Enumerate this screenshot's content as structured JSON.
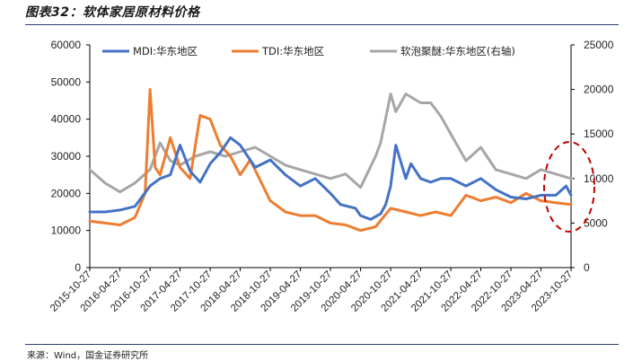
{
  "header": {
    "title": "图表32：软体家居原材料价格"
  },
  "footer": {
    "source": "来源：Wind，国金证券研究所"
  },
  "colors": {
    "mdi": "#4472c4",
    "tdi": "#ed7d31",
    "polyol": "#a6a6a6",
    "highlight": "#c00000",
    "axis": "#000000",
    "rule": "#2f3f6e"
  },
  "chart_data": {
    "type": "line",
    "x_tick_labels": [
      "2015-10-27",
      "2016-04-27",
      "2016-10-27",
      "2017-04-27",
      "2017-10-27",
      "2018-04-27",
      "2018-10-27",
      "2019-04-27",
      "2019-10-27",
      "2020-04-27",
      "2020-10-27",
      "2021-04-27",
      "2021-10-27",
      "2022-04-27",
      "2022-10-27",
      "2023-04-27",
      "2023-10-27"
    ],
    "y_left": {
      "min": 0,
      "max": 60000,
      "ticks": [
        "0",
        "10000",
        "20000",
        "30000",
        "40000",
        "50000",
        "60000"
      ]
    },
    "y_right": {
      "min": 0,
      "max": 25000,
      "ticks": [
        "0",
        "5000",
        "10000",
        "15000",
        "20000",
        "25000"
      ]
    },
    "legend_position": "top",
    "annotation": "red dashed ellipse around latest values",
    "series": [
      {
        "name": "MDI:华东地区",
        "axis": "left",
        "x": [
          "2015-10-27",
          "2016-01-27",
          "2016-04-27",
          "2016-07-27",
          "2016-10-27",
          "2016-12-27",
          "2017-02-27",
          "2017-04-27",
          "2017-06-27",
          "2017-08-27",
          "2017-10-27",
          "2017-12-27",
          "2018-02-27",
          "2018-04-27",
          "2018-07-27",
          "2018-10-27",
          "2019-01-27",
          "2019-04-27",
          "2019-07-27",
          "2019-10-27",
          "2019-12-27",
          "2020-03-27",
          "2020-04-27",
          "2020-06-27",
          "2020-08-27",
          "2020-09-27",
          "2020-10-27",
          "2020-11-27",
          "2021-01-27",
          "2021-02-27",
          "2021-04-27",
          "2021-06-27",
          "2021-08-27",
          "2021-10-27",
          "2022-01-27",
          "2022-04-27",
          "2022-07-27",
          "2022-10-27",
          "2023-01-27",
          "2023-04-27",
          "2023-07-27",
          "2023-09-27",
          "2023-10-27"
        ],
        "values": [
          15000,
          15000,
          15500,
          16500,
          22000,
          24000,
          25000,
          33000,
          26000,
          23000,
          28000,
          31000,
          35000,
          33000,
          27000,
          29000,
          25000,
          22000,
          24000,
          20000,
          17000,
          16000,
          14000,
          13000,
          14500,
          17000,
          22000,
          33000,
          24000,
          28000,
          24000,
          23000,
          24000,
          24000,
          22000,
          24000,
          21000,
          19000,
          18500,
          19500,
          19500,
          22000,
          19500
        ]
      },
      {
        "name": "TDI:华东地区",
        "axis": "left",
        "x": [
          "2015-10-27",
          "2016-01-27",
          "2016-04-27",
          "2016-07-27",
          "2016-09-27",
          "2016-10-27",
          "2016-11-27",
          "2016-12-27",
          "2017-02-27",
          "2017-04-27",
          "2017-06-27",
          "2017-08-27",
          "2017-10-27",
          "2017-12-27",
          "2018-02-27",
          "2018-04-27",
          "2018-06-27",
          "2018-10-27",
          "2019-01-27",
          "2019-04-27",
          "2019-07-27",
          "2019-10-27",
          "2020-01-27",
          "2020-04-27",
          "2020-07-27",
          "2020-10-27",
          "2021-01-27",
          "2021-04-27",
          "2021-07-27",
          "2021-10-27",
          "2022-01-27",
          "2022-04-27",
          "2022-07-27",
          "2022-10-27",
          "2023-01-27",
          "2023-04-27",
          "2023-07-27",
          "2023-10-27"
        ],
        "values": [
          12500,
          12000,
          11500,
          13500,
          20000,
          48000,
          27000,
          25000,
          35000,
          27000,
          24000,
          41000,
          40000,
          33000,
          30000,
          25000,
          29000,
          18000,
          15000,
          14000,
          14000,
          12000,
          11500,
          10000,
          11000,
          16000,
          15000,
          14000,
          15000,
          14000,
          19500,
          18000,
          19000,
          17500,
          20000,
          18000,
          17500,
          17000
        ]
      },
      {
        "name": "软泡聚醚:华东地区(右轴)",
        "axis": "right",
        "x": [
          "2015-10-27",
          "2016-01-27",
          "2016-04-27",
          "2016-07-27",
          "2016-10-27",
          "2016-12-27",
          "2017-02-27",
          "2017-04-27",
          "2017-07-27",
          "2017-10-27",
          "2018-01-27",
          "2018-04-27",
          "2018-07-27",
          "2018-10-27",
          "2019-01-27",
          "2019-04-27",
          "2019-07-27",
          "2019-10-27",
          "2020-01-27",
          "2020-04-27",
          "2020-07-27",
          "2020-08-27",
          "2020-10-27",
          "2020-11-27",
          "2021-01-27",
          "2021-04-27",
          "2021-06-27",
          "2021-08-27",
          "2021-10-27",
          "2022-01-27",
          "2022-04-27",
          "2022-07-27",
          "2022-10-27",
          "2023-01-27",
          "2023-04-27",
          "2023-07-27",
          "2023-10-27"
        ],
        "values": [
          11000,
          9500,
          8500,
          9500,
          11000,
          14000,
          12000,
          11500,
          12500,
          13000,
          12500,
          13000,
          13500,
          12500,
          11500,
          11000,
          10500,
          10000,
          10500,
          9000,
          12500,
          14000,
          19500,
          17500,
          19500,
          18500,
          18500,
          17000,
          15000,
          12000,
          13500,
          11000,
          10500,
          10000,
          11000,
          10500,
          10000
        ]
      }
    ]
  }
}
